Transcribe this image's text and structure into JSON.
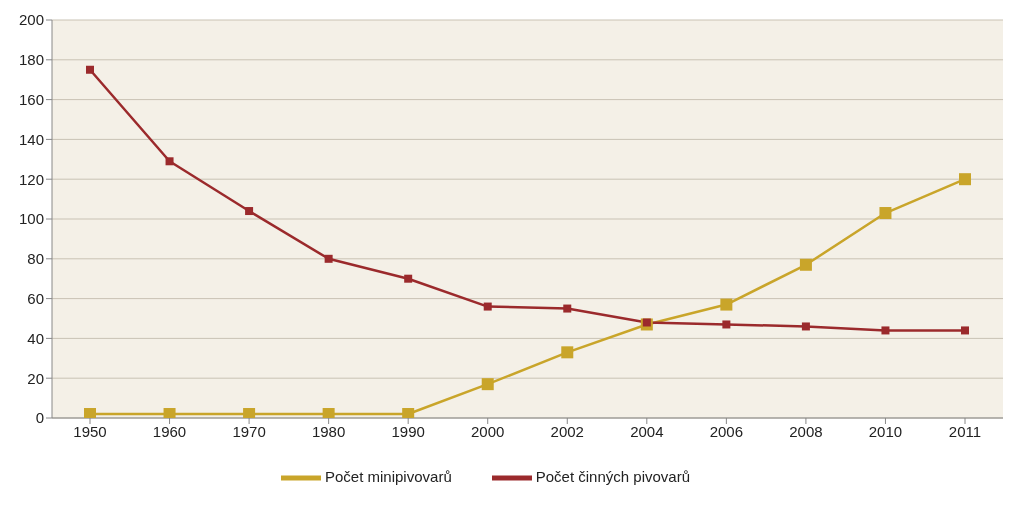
{
  "chart_data": {
    "type": "line",
    "categories": [
      "1950",
      "1960",
      "1970",
      "1980",
      "1990",
      "2000",
      "2002",
      "2004",
      "2006",
      "2008",
      "2010",
      "2011"
    ],
    "series": [
      {
        "name": "Počet minipivovarů",
        "color": "#c9a52a",
        "values": [
          2,
          2,
          2,
          2,
          2,
          17,
          33,
          47,
          57,
          77,
          103,
          120
        ]
      },
      {
        "name": "Počet činných pivovarů",
        "color": "#9b2a2c",
        "values": [
          175,
          129,
          104,
          80,
          70,
          56,
          55,
          48,
          47,
          46,
          44,
          44
        ]
      }
    ],
    "ylim": [
      0,
      200
    ],
    "yticks": [
      0,
      20,
      40,
      60,
      80,
      100,
      120,
      140,
      160,
      180,
      200
    ],
    "grid": "y",
    "legend": "bottom",
    "marker": "square",
    "line_style": "solid"
  }
}
